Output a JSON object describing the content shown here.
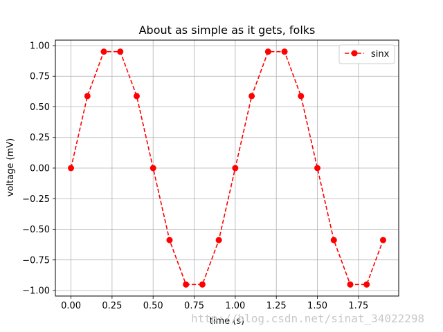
{
  "chart_data": {
    "type": "line",
    "title": "About as simple as it gets, folks",
    "xlabel": "time (s)",
    "ylabel": "voltage (mV)",
    "xlim": [
      -0.095,
      1.995
    ],
    "ylim": [
      -1.045,
      1.045
    ],
    "x_ticks": [
      0.0,
      0.25,
      0.5,
      0.75,
      1.0,
      1.25,
      1.5,
      1.75
    ],
    "x_tick_labels": [
      "0.00",
      "0.25",
      "0.50",
      "0.75",
      "1.00",
      "1.25",
      "1.50",
      "1.75"
    ],
    "y_ticks": [
      -1.0,
      -0.75,
      -0.5,
      -0.25,
      0.0,
      0.25,
      0.5,
      0.75,
      1.0
    ],
    "y_tick_labels": [
      "−1.00",
      "−0.75",
      "−0.50",
      "−0.25",
      "0.00",
      "0.25",
      "0.50",
      "0.75",
      "1.00"
    ],
    "grid": true,
    "legend_position": "top-right",
    "series": [
      {
        "name": "sinx",
        "color": "#ff0000",
        "line_style": "dashed",
        "marker": "circle",
        "x": [
          0.0,
          0.1,
          0.2,
          0.3,
          0.4,
          0.5,
          0.6,
          0.7,
          0.8,
          0.9,
          1.0,
          1.1,
          1.2,
          1.3,
          1.4,
          1.5,
          1.6,
          1.7,
          1.8,
          1.9
        ],
        "y": [
          0.0,
          0.588,
          0.951,
          0.951,
          0.588,
          0.0,
          -0.588,
          -0.951,
          -0.951,
          -0.588,
          0.0,
          0.588,
          0.951,
          0.951,
          0.588,
          0.0,
          -0.588,
          -0.951,
          -0.951,
          -0.588
        ]
      }
    ]
  },
  "watermark": "http://blog.csdn.net/sinat_34022298"
}
